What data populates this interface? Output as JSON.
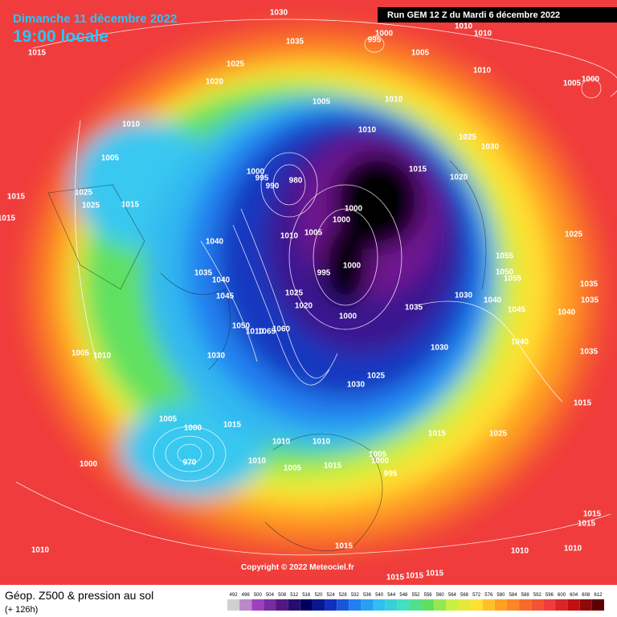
{
  "header": {
    "date": "Dimanche 11 décembre 2022",
    "time": "19:00 locale",
    "run": "Run GEM 12 Z du Mardi 6 décembre 2022"
  },
  "footer": {
    "title": "Géop. Z500 & pression au sol",
    "lead": "(+ 126h)",
    "copyright": "Copyright © 2022 Meteociel.fr"
  },
  "colorbar": {
    "ticks": [
      492,
      496,
      500,
      504,
      508,
      512,
      516,
      520,
      524,
      528,
      532,
      536,
      540,
      544,
      548,
      552,
      556,
      560,
      564,
      568,
      572,
      576,
      580,
      584,
      588,
      592,
      596,
      600,
      604,
      608,
      612
    ]
  },
  "pressure_labels": [
    1030,
    1035,
    995,
    1000,
    1005,
    1010,
    1010,
    1015,
    1025,
    1020,
    1010,
    1005,
    1000,
    1005,
    1010,
    1010,
    1010,
    1025,
    1030,
    1005,
    1015,
    1020,
    1000,
    995,
    990,
    980,
    1025,
    1015,
    1025,
    1015,
    1000,
    1000,
    1015,
    1010,
    1005,
    1025,
    1040,
    1055,
    1000,
    995,
    1035,
    1050,
    1040,
    1055,
    1035,
    1045,
    1025,
    1030,
    1040,
    1035,
    1020,
    1035,
    1045,
    1040,
    1000,
    1050,
    1010,
    1065,
    1060,
    1040,
    1030,
    1005,
    1010,
    1030,
    1035,
    1025,
    1030,
    1015,
    1005,
    1000,
    1015,
    1015,
    1025,
    1010,
    1010,
    1005,
    1000,
    970,
    1000,
    1010,
    1005,
    1015,
    995,
    1015,
    1015,
    1010,
    1015,
    1010,
    1010,
    1015,
    1015,
    1015
  ]
}
